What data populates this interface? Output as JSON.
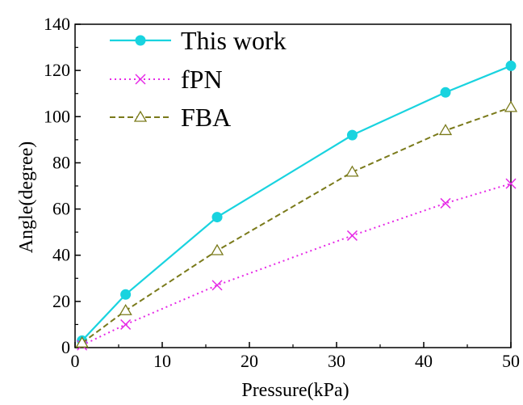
{
  "chart_data": {
    "type": "line",
    "title": "",
    "xlabel": "Pressure(kPa)",
    "ylabel": "Angle(degree)",
    "xlim": [
      0,
      50
    ],
    "ylim": [
      0,
      140
    ],
    "xticks": [
      0,
      10,
      20,
      30,
      40,
      50
    ],
    "yticks": [
      0,
      20,
      40,
      60,
      80,
      100,
      120,
      140
    ],
    "xtick_labels": [
      "0",
      "10",
      "20",
      "30",
      "40",
      "50"
    ],
    "ytick_labels": [
      "0",
      "20",
      "40",
      "60",
      "80",
      "100",
      "120",
      "140"
    ],
    "grid": false,
    "legend_position": "top-left",
    "series": [
      {
        "name": "This work",
        "color": "#19d3df",
        "line_style": "solid",
        "marker": "filled-circle",
        "points": [
          {
            "x": 0.8,
            "y": 3
          },
          {
            "x": 5.8,
            "y": 23
          },
          {
            "x": 16.3,
            "y": 56.5
          },
          {
            "x": 31.8,
            "y": 92
          },
          {
            "x": 42.5,
            "y": 110.5
          },
          {
            "x": 50,
            "y": 122
          }
        ]
      },
      {
        "name": "fPN",
        "color": "#e62ae6",
        "line_style": "dotted",
        "marker": "x",
        "points": [
          {
            "x": 0.8,
            "y": 1
          },
          {
            "x": 5.8,
            "y": 10
          },
          {
            "x": 16.3,
            "y": 27
          },
          {
            "x": 31.8,
            "y": 48.5
          },
          {
            "x": 42.5,
            "y": 62.5
          },
          {
            "x": 50,
            "y": 71
          }
        ]
      },
      {
        "name": "FBA",
        "color": "#7a7a1a",
        "line_style": "dashed",
        "marker": "open-triangle",
        "points": [
          {
            "x": 0.8,
            "y": 2
          },
          {
            "x": 5.8,
            "y": 16
          },
          {
            "x": 16.3,
            "y": 42
          },
          {
            "x": 31.8,
            "y": 76
          },
          {
            "x": 42.5,
            "y": 94
          },
          {
            "x": 50,
            "y": 104
          }
        ]
      }
    ]
  }
}
